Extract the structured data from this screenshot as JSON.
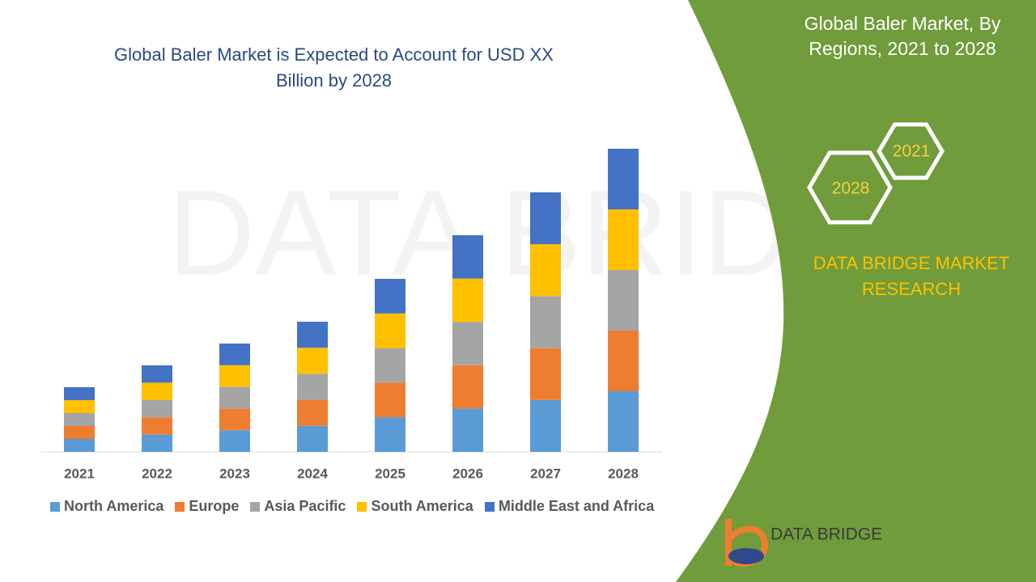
{
  "chart_data": {
    "type": "stacked_bar",
    "title": "Global Baler Market is Expected to Account for USD XX Billion by 2028",
    "categories": [
      "2021",
      "2022",
      "2023",
      "2024",
      "2025",
      "2026",
      "2027",
      "2028"
    ],
    "series": [
      {
        "name": "North America",
        "color": "#5b9bd5",
        "values": [
          16,
          21.4,
          26.8,
          32.2,
          42.8,
          53.6,
          64.2,
          75
        ]
      },
      {
        "name": "Europe",
        "color": "#ed7d31",
        "values": [
          16,
          21.4,
          26.8,
          32.2,
          42.8,
          53.6,
          64.2,
          75
        ]
      },
      {
        "name": "Asia Pacific",
        "color": "#a5a5a5",
        "values": [
          16,
          21.4,
          26.8,
          32.2,
          42.8,
          53.6,
          64.2,
          75
        ]
      },
      {
        "name": "South America",
        "color": "#ffc000",
        "values": [
          16,
          21.4,
          26.8,
          32.2,
          42.8,
          53.6,
          64.2,
          75
        ]
      },
      {
        "name": "Middle East and Africa",
        "color": "#4472c4",
        "values": [
          16,
          21.4,
          26.8,
          32.2,
          42.8,
          53.6,
          64.2,
          75
        ]
      }
    ],
    "legend": "bottom"
  },
  "side_panel": {
    "title": "Global Baler Market, By Regions, 2021 to 2028",
    "hexagons": [
      "2021",
      "2028"
    ],
    "brand": "DATA BRIDGE MARKET RESEARCH",
    "logo": "DATA BRIDGE"
  }
}
